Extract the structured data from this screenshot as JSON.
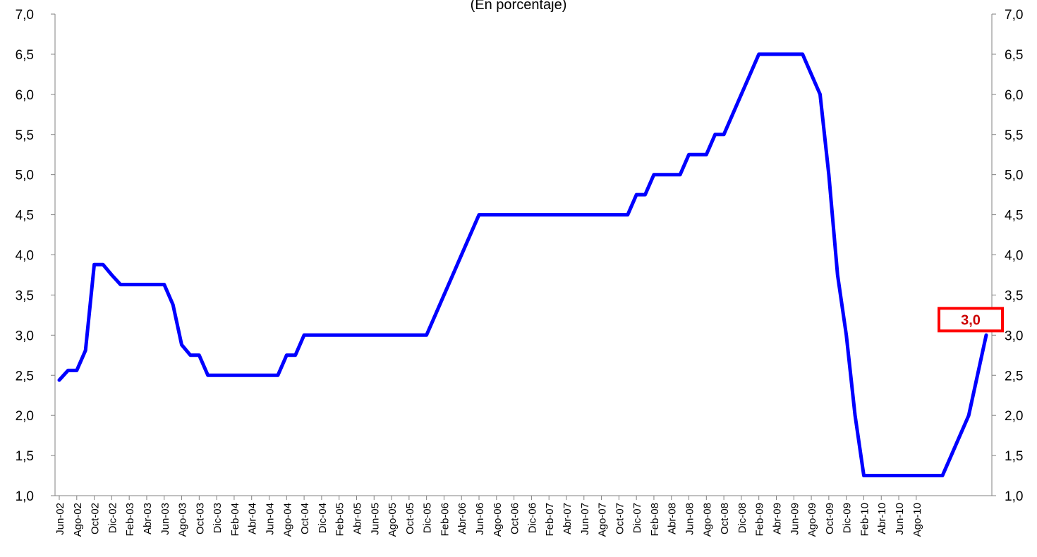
{
  "chart_data": {
    "type": "line",
    "subtitle": "(En porcentaje)",
    "title": "",
    "xlabel": "",
    "ylabel": "",
    "ylim": [
      1.0,
      7.0
    ],
    "yticks": [
      "1,0",
      "1,5",
      "2,0",
      "2,5",
      "3,0",
      "3,5",
      "4,0",
      "4,5",
      "5,0",
      "5,5",
      "6,0",
      "6,5",
      "7,0"
    ],
    "x_tick_labels": [
      "Jun-02",
      "Ago-02",
      "Oct-02",
      "Dic-02",
      "Feb-03",
      "Abr-03",
      "Jun-03",
      "Ago-03",
      "Oct-03",
      "Dic-03",
      "Feb-04",
      "Abr-04",
      "Jun-04",
      "Ago-04",
      "Oct-04",
      "Dic-04",
      "Feb-05",
      "Abr-05",
      "Jun-05",
      "Ago-05",
      "Oct-05",
      "Dic-05",
      "Feb-06",
      "Abr-06",
      "Jun-06",
      "Ago-06",
      "Oct-06",
      "Dic-06",
      "Feb-07",
      "Abr-07",
      "Jun-07",
      "Ago-07",
      "Oct-07",
      "Dic-07",
      "Feb-08",
      "Abr-08",
      "Jun-08",
      "Ago-08",
      "Oct-08",
      "Dic-08",
      "Feb-09",
      "Abr-09",
      "Jun-09",
      "Ago-09",
      "Oct-09",
      "Dic-09",
      "Feb-10",
      "Abr-10",
      "Jun-10",
      "Ago-10"
    ],
    "series": [
      {
        "color": "#0000ff",
        "values": [
          2.44,
          2.56,
          2.56,
          2.81,
          3.88,
          3.88,
          3.75,
          3.63,
          3.63,
          3.63,
          3.63,
          3.63,
          3.63,
          3.38,
          2.88,
          2.75,
          2.75,
          2.5,
          2.5,
          2.5,
          2.5,
          2.5,
          2.5,
          2.5,
          2.5,
          2.5,
          2.75,
          2.75,
          3.0,
          3.0,
          3.0,
          3.0,
          3.0,
          3.0,
          3.0,
          3.0,
          3.0,
          3.0,
          3.0,
          3.0,
          3.0,
          3.0,
          3.0,
          3.25,
          3.5,
          3.75,
          4.0,
          4.25,
          4.5,
          4.5,
          4.5,
          4.5,
          4.5,
          4.5,
          4.5,
          4.5,
          4.5,
          4.5,
          4.5,
          4.5,
          4.5,
          4.5,
          4.5,
          4.5,
          4.5,
          4.5,
          4.75,
          4.75,
          5.0,
          5.0,
          5.0,
          5.0,
          5.25,
          5.25,
          5.25,
          5.5,
          5.5,
          5.75,
          6.0,
          6.25,
          6.5,
          6.5,
          6.5,
          6.5,
          6.5,
          6.5,
          6.25,
          6.0,
          5.0,
          3.75,
          3.0,
          2.0,
          1.25,
          1.25,
          1.25,
          1.25,
          1.25,
          1.25,
          1.25,
          1.25,
          1.25,
          1.25,
          1.5,
          1.75,
          2.0,
          2.5,
          3.0
        ]
      }
    ],
    "annotation": {
      "text": "3,0",
      "color": "#cc0000"
    }
  }
}
